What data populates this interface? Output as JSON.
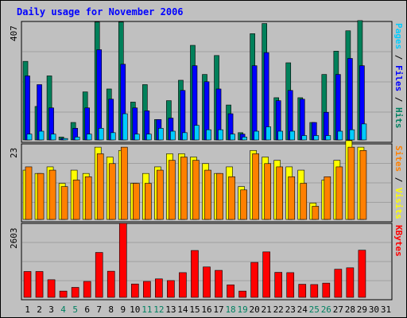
{
  "chart_data": {
    "title": "Daily usage for November 2006",
    "type": "bar",
    "x": [
      "1",
      "2",
      "3",
      "4",
      "5",
      "6",
      "7",
      "8",
      "9",
      "10",
      "11",
      "12",
      "13",
      "14",
      "15",
      "16",
      "17",
      "18",
      "19",
      "20",
      "21",
      "22",
      "23",
      "24",
      "25",
      "26",
      "27",
      "28",
      "29",
      "30",
      "31"
    ],
    "weekend_days": [
      "4",
      "5",
      "11",
      "12",
      "18",
      "19",
      "25",
      "26"
    ],
    "panels": [
      {
        "name": "hits_files_pages",
        "ymax_label": "407",
        "ymax": 407,
        "side_labels": [
          {
            "text": "Pages",
            "color": "#00ccff"
          },
          {
            "text": " / ",
            "color": "#000000"
          },
          {
            "text": "Files",
            "color": "#0000ff"
          },
          {
            "text": " / ",
            "color": "#000000"
          },
          {
            "text": "Hits",
            "color": "#008060"
          }
        ],
        "series": [
          {
            "name": "Hits",
            "color": "#00805a",
            "values": [
              270,
              115,
              220,
              10,
              60,
              165,
              405,
              175,
              405,
              130,
              190,
              70,
              135,
              205,
              325,
              225,
              290,
              120,
              25,
              365,
              400,
              145,
              265,
              145,
              60,
              225,
              305,
              375,
              410,
              0,
              0
            ]
          },
          {
            "name": "Files",
            "color": "#0000ff",
            "values": [
              220,
              190,
              110,
              5,
              40,
              110,
              310,
              140,
              260,
              110,
              100,
              70,
              75,
              170,
              255,
              200,
              175,
              90,
              20,
              255,
              300,
              135,
              170,
              140,
              60,
              95,
              225,
              280,
              255,
              0,
              0
            ]
          },
          {
            "name": "Pages",
            "color": "#00ccff",
            "values": [
              20,
              30,
              20,
              5,
              10,
              20,
              40,
              25,
              90,
              20,
              20,
              40,
              30,
              25,
              50,
              35,
              35,
              20,
              10,
              30,
              45,
              30,
              30,
              15,
              15,
              15,
              30,
              35,
              55,
              0,
              0
            ]
          }
        ]
      },
      {
        "name": "visits_sites",
        "ymax_label": "23",
        "ymax": 23,
        "side_labels": [
          {
            "text": "Sites",
            "color": "#ff8000"
          },
          {
            "text": " / ",
            "color": "#000000"
          },
          {
            "text": "Visits",
            "color": "#ffff00"
          }
        ],
        "series": [
          {
            "name": "Visits",
            "color": "#ffff00",
            "values": [
              15,
              14,
              16,
              11,
              15,
              14,
              22,
              19,
              21,
              11,
              14,
              16,
              20,
              20,
              19,
              17,
              14,
              16,
              10,
              21,
              19,
              18,
              16,
              15,
              5,
              12,
              18,
              24,
              22,
              0,
              0
            ]
          },
          {
            "name": "Sites",
            "color": "#ff8000",
            "values": [
              16,
              14,
              15,
              10,
              12,
              13,
              20,
              17,
              22,
              11,
              11,
              15,
              18,
              19,
              18,
              15,
              14,
              13,
              9,
              20,
              17,
              16,
              13,
              11,
              4,
              13,
              16,
              22,
              21,
              0,
              0
            ]
          }
        ]
      },
      {
        "name": "kbytes",
        "ymax_label": "2603",
        "ymax": 2603,
        "side_labels": [
          {
            "text": "KBytes",
            "color": "#ff0000"
          }
        ],
        "series": [
          {
            "name": "KBytes",
            "color": "#ff0000",
            "values": [
              910,
              910,
              620,
              220,
              350,
              560,
              1580,
              920,
              2603,
              470,
              560,
              650,
              590,
              870,
              1650,
              1070,
              950,
              440,
              220,
              1230,
              1600,
              880,
              870,
              460,
              450,
              500,
              990,
              1040,
              1660,
              0,
              0
            ]
          }
        ]
      }
    ]
  }
}
